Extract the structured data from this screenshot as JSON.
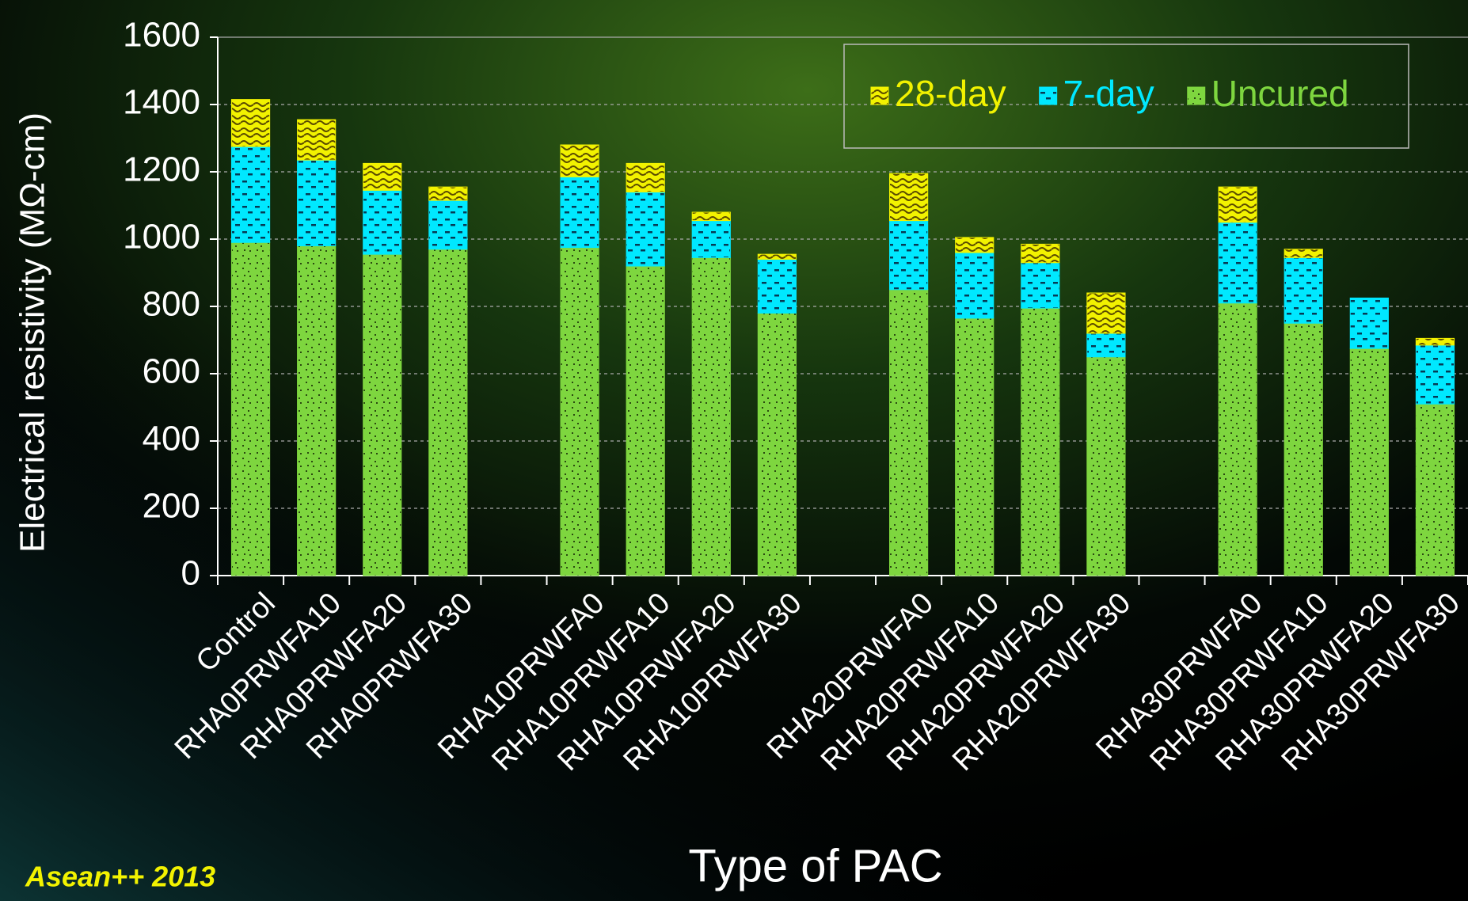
{
  "chart_data": {
    "type": "stacked_bar",
    "x_label": "Type of PAC",
    "y_label": "Electrical resistivity (MΩ-cm)",
    "annotation": "Asean++ 2013",
    "categories": [
      "Control",
      "RHA0PRWFA10",
      "RHA0PRWFA20",
      "RHA0PRWFA30",
      null,
      "RHA10PRWFA0",
      "RHA10PRWFA10",
      "RHA10PRWFA20",
      "RHA10PRWFA30",
      null,
      "RHA20PRWFA0",
      "RHA20PRWFA10",
      "RHA20PRWFA20",
      "RHA20PRWFA30",
      null,
      "RHA30PRWFA0",
      "RHA30PRWFA10",
      "RHA30PRWFA20",
      "RHA30PRWFA30"
    ],
    "series": [
      {
        "name": "Uncured",
        "color": "#7ed63f",
        "values": [
          990,
          980,
          955,
          970,
          null,
          975,
          920,
          945,
          780,
          null,
          850,
          765,
          795,
          650,
          null,
          810,
          750,
          675,
          510
        ]
      },
      {
        "name": "7-day",
        "color": "#00e8ff",
        "values": [
          285,
          255,
          190,
          145,
          null,
          210,
          220,
          110,
          160,
          null,
          205,
          195,
          135,
          70,
          null,
          240,
          195,
          150,
          175
        ]
      },
      {
        "name": "28-day",
        "color": "#f2f200",
        "values": [
          140,
          120,
          80,
          40,
          null,
          95,
          85,
          25,
          15,
          null,
          140,
          45,
          55,
          120,
          null,
          105,
          25,
          0,
          20
        ]
      }
    ],
    "legend_order": [
      2,
      1,
      0
    ],
    "ylim": [
      0,
      1600
    ],
    "yticks": [
      0,
      200,
      400,
      600,
      800,
      1000,
      1200,
      1400,
      1600
    ],
    "grid": true
  }
}
